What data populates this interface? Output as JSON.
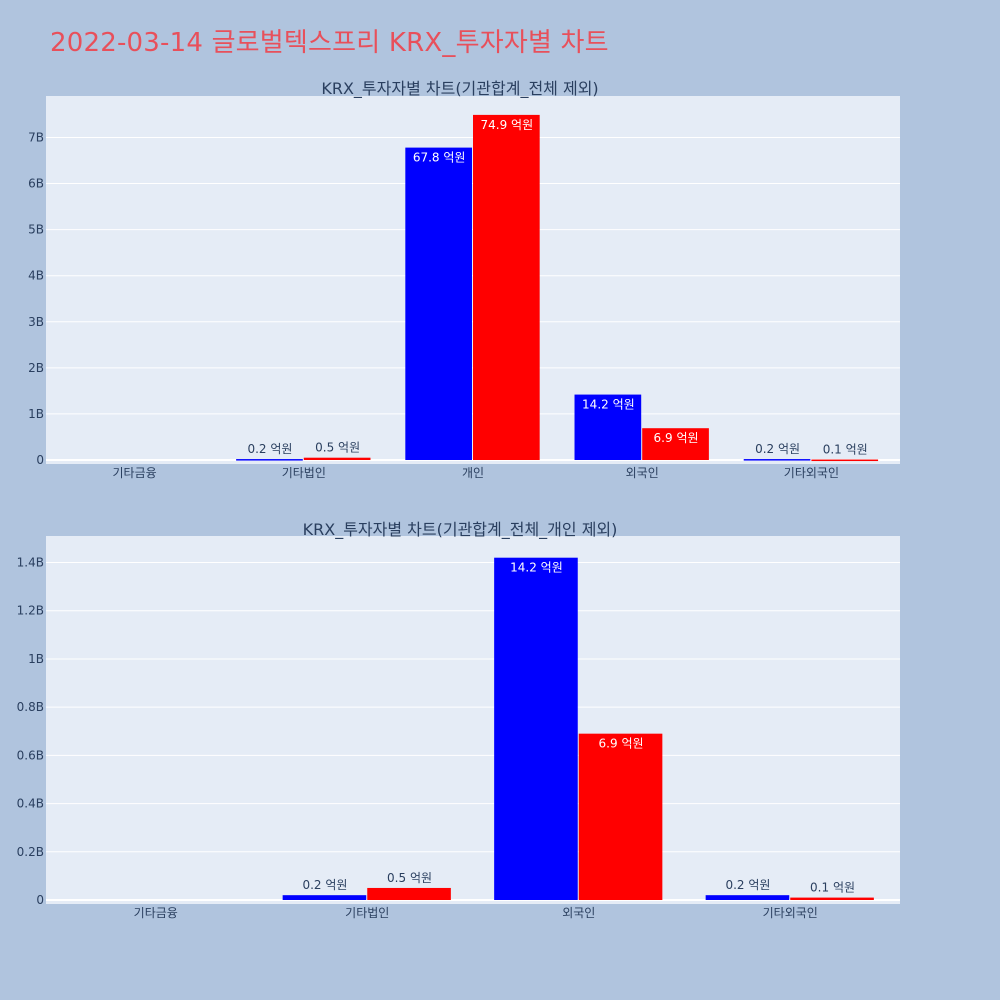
{
  "page": {
    "title": "2022-03-14 글로벌텍스프리 KRX_투자자별 차트"
  },
  "colors": {
    "background": "#b0c4de",
    "plot": "#e5ecf6",
    "title": "#e8505b",
    "series1": "#0000ff",
    "series2": "#ff0000"
  },
  "chart_data": [
    {
      "type": "bar",
      "title": "KRX_투자자별 차트(기관합계_전체 제외)",
      "categories": [
        "기타금융",
        "기타법인",
        "개인",
        "외국인",
        "기타외국인"
      ],
      "series": [
        {
          "color": "#0000ff",
          "values": [
            0,
            20000000,
            6780000000,
            1420000000,
            20000000
          ],
          "labels": [
            "",
            "0.2 억원",
            "67.8 억원",
            "14.2 억원",
            "0.2 억원"
          ]
        },
        {
          "color": "#ff0000",
          "values": [
            0,
            50000000,
            7490000000,
            690000000,
            10000000
          ],
          "labels": [
            "",
            "0.5 억원",
            "74.9 억원",
            "6.9 억원",
            "0.1 억원"
          ]
        }
      ],
      "ylim": [
        0,
        7900000000
      ],
      "yticks": [
        0,
        1000000000,
        2000000000,
        3000000000,
        4000000000,
        5000000000,
        6000000000,
        7000000000
      ],
      "ytick_labels": [
        "0",
        "1B",
        "2B",
        "3B",
        "4B",
        "5B",
        "6B",
        "7B"
      ],
      "grid": true
    },
    {
      "type": "bar",
      "title": "KRX_투자자별 차트(기관합계_전체_개인 제외)",
      "categories": [
        "기타금융",
        "기타법인",
        "외국인",
        "기타외국인"
      ],
      "series": [
        {
          "color": "#0000ff",
          "values": [
            0,
            20000000,
            1420000000,
            20000000
          ],
          "labels": [
            "",
            "0.2 억원",
            "14.2 억원",
            "0.2 억원"
          ]
        },
        {
          "color": "#ff0000",
          "values": [
            0,
            50000000,
            690000000,
            10000000
          ],
          "labels": [
            "",
            "0.5 억원",
            "6.9 억원",
            "0.1 억원"
          ]
        }
      ],
      "ylim": [
        0,
        1510000000
      ],
      "yticks": [
        0,
        200000000,
        400000000,
        600000000,
        800000000,
        1000000000,
        1200000000,
        1400000000
      ],
      "ytick_labels": [
        "0",
        "0.2B",
        "0.4B",
        "0.6B",
        "0.8B",
        "1B",
        "1.2B",
        "1.4B"
      ],
      "grid": true
    }
  ]
}
